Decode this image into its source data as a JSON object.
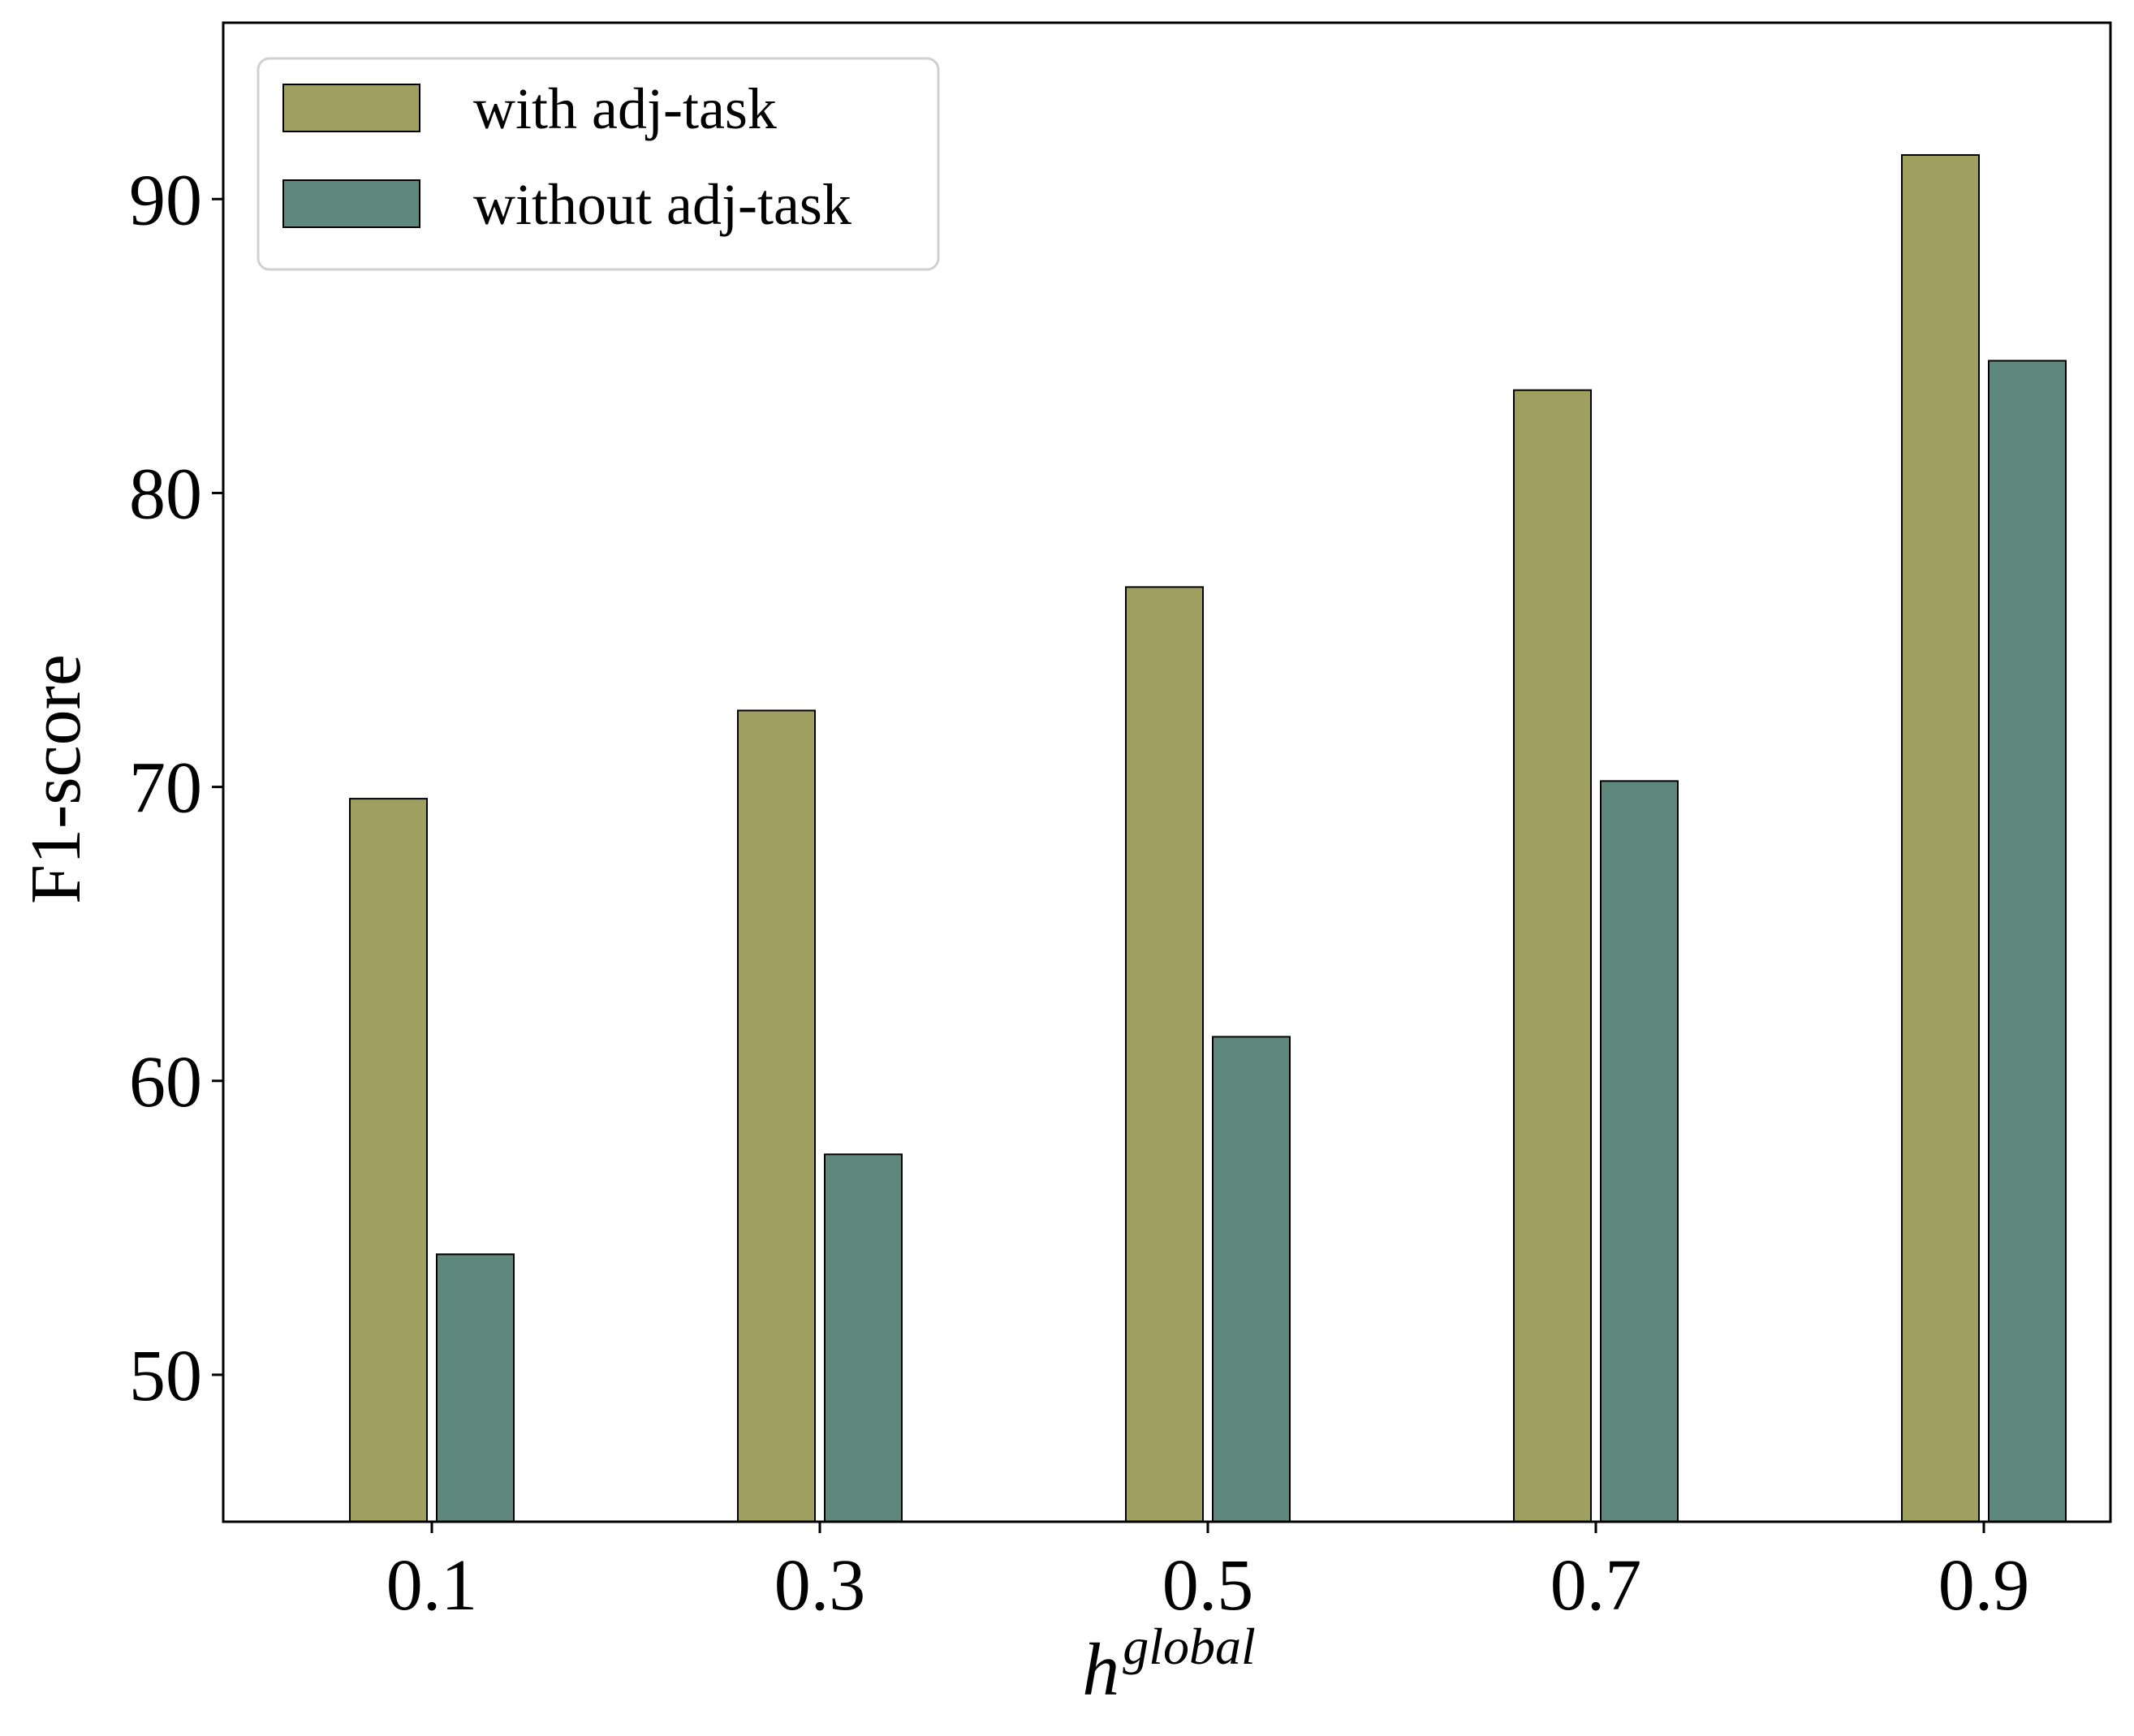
{
  "chart_data": {
    "type": "bar",
    "categories": [
      "0.1",
      "0.3",
      "0.5",
      "0.7",
      "0.9"
    ],
    "series": [
      {
        "name": "with adj-task",
        "values": [
          69.6,
          72.6,
          76.8,
          83.5,
          91.5
        ],
        "color": "#9f9f5f"
      },
      {
        "name": "without adj-task",
        "values": [
          54.1,
          57.5,
          61.5,
          70.2,
          84.5
        ],
        "color": "#5e887b"
      }
    ],
    "title": "",
    "xlabel": "h",
    "xlabel_superscript": "global",
    "ylabel": "F1-score",
    "ylim": [
      45,
      96
    ],
    "yticks": [
      50,
      60,
      70,
      80,
      90
    ],
    "ytick_labels": [
      "50",
      "60",
      "70",
      "80",
      "90"
    ],
    "grid": false,
    "legend_position": "top-left"
  }
}
